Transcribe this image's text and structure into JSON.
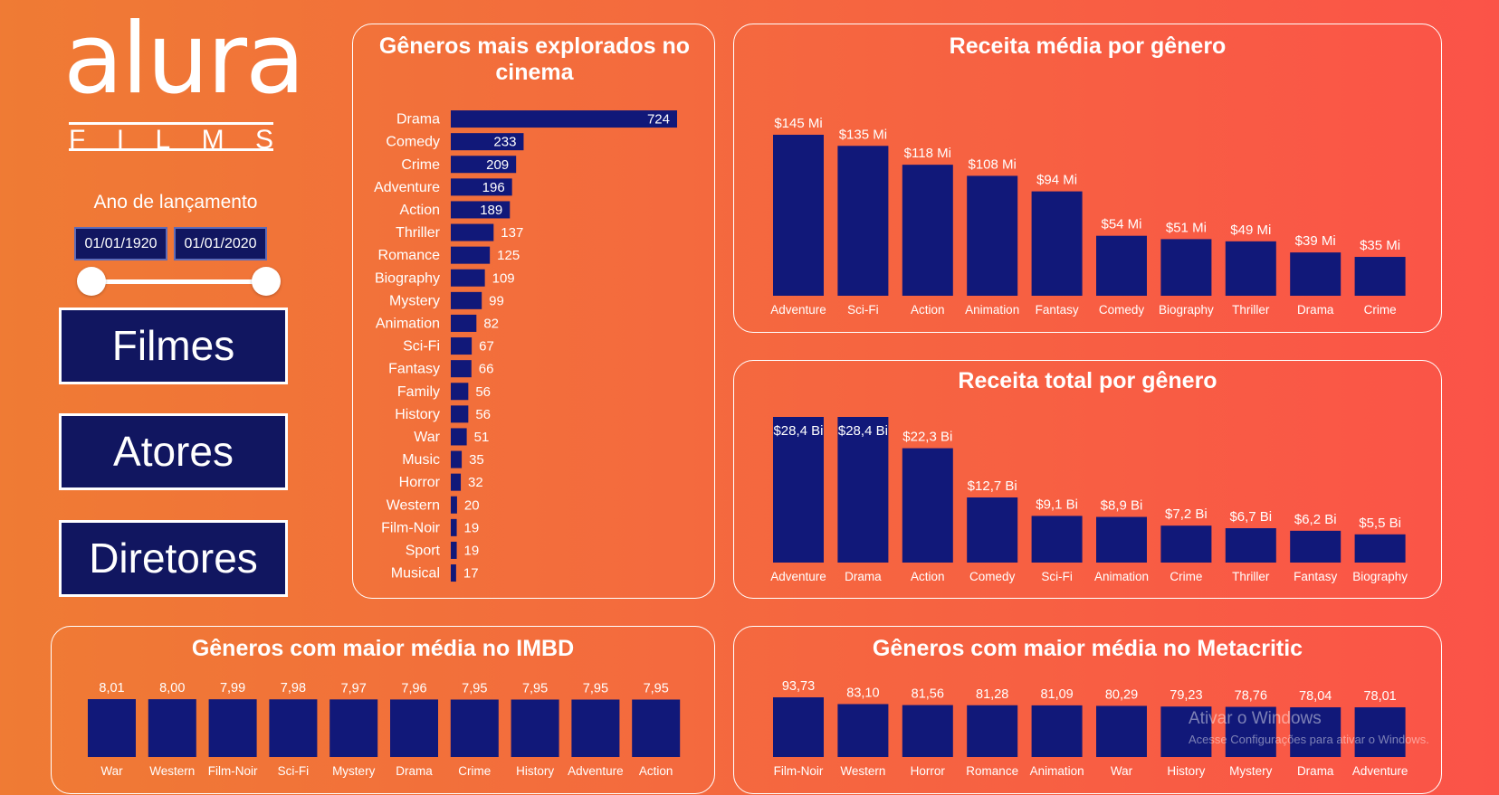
{
  "logo": {
    "brand": "alura",
    "sub_letters": [
      "F",
      "I",
      "L",
      "M",
      "S"
    ]
  },
  "filter": {
    "title": "Ano de lançamento",
    "start": "01/01/1920",
    "end": "01/01/2020",
    "slider_start_fraction": 0,
    "slider_end_fraction": 1
  },
  "nav": {
    "filmes": "Filmes",
    "atores": "Atores",
    "diretores": "Diretores"
  },
  "colors": {
    "bar": "#111879",
    "text": "#ffffff",
    "panel_border": "#ffffff",
    "button_bg": "#111660"
  },
  "watermark": {
    "title": "Ativar o Windows",
    "subtitle": "Acesse Configurações para ativar o Windows."
  },
  "chart_data": [
    {
      "id": "genres",
      "type": "bar",
      "orientation": "horizontal",
      "title": "Gêneros mais explorados no cinema",
      "categories": [
        "Drama",
        "Comedy",
        "Crime",
        "Adventure",
        "Action",
        "Thriller",
        "Romance",
        "Biography",
        "Mystery",
        "Animation",
        "Sci-Fi",
        "Fantasy",
        "Family",
        "History",
        "War",
        "Music",
        "Horror",
        "Western",
        "Film-Noir",
        "Sport",
        "Musical"
      ],
      "values": [
        724,
        233,
        209,
        196,
        189,
        137,
        125,
        109,
        99,
        82,
        67,
        66,
        56,
        56,
        51,
        35,
        32,
        20,
        19,
        19,
        17
      ],
      "labels": [
        "724",
        "233",
        "209",
        "196",
        "189",
        "137",
        "125",
        "109",
        "99",
        "82",
        "67",
        "66",
        "56",
        "56",
        "51",
        "35",
        "32",
        "20",
        "19",
        "19",
        "17"
      ],
      "xlim": [
        0,
        724
      ]
    },
    {
      "id": "avg_revenue",
      "type": "bar",
      "title": "Receita média por gênero",
      "categories": [
        "Adventure",
        "Sci-Fi",
        "Action",
        "Animation",
        "Fantasy",
        "Comedy",
        "Biography",
        "Thriller",
        "Drama",
        "Crime"
      ],
      "values": [
        145,
        135,
        118,
        108,
        94,
        54,
        51,
        49,
        39,
        35
      ],
      "labels": [
        "$145 Mi",
        "$135 Mi",
        "$118 Mi",
        "$108 Mi",
        "$94 Mi",
        "$54 Mi",
        "$51 Mi",
        "$49 Mi",
        "$39 Mi",
        "$35 Mi"
      ],
      "ylim": [
        0,
        145
      ]
    },
    {
      "id": "total_revenue",
      "type": "bar",
      "title": "Receita total por gênero",
      "categories": [
        "Adventure",
        "Drama",
        "Action",
        "Comedy",
        "Sci-Fi",
        "Animation",
        "Crime",
        "Thriller",
        "Fantasy",
        "Biography"
      ],
      "values": [
        28.4,
        28.4,
        22.3,
        12.7,
        9.1,
        8.9,
        7.2,
        6.7,
        6.2,
        5.5
      ],
      "labels": [
        "$28,4 Bi",
        "$28,4 Bi",
        "$22,3 Bi",
        "$12,7 Bi",
        "$9,1 Bi",
        "$8,9 Bi",
        "$7,2 Bi",
        "$6,7 Bi",
        "$6,2 Bi",
        "$5,5 Bi"
      ],
      "ylim": [
        0,
        28.4
      ]
    },
    {
      "id": "imdb",
      "type": "bar",
      "title": "Gêneros com maior média no IMBD",
      "categories": [
        "War",
        "Western",
        "Film-Noir",
        "Sci-Fi",
        "Mystery",
        "Drama",
        "Crime",
        "History",
        "Adventure",
        "Action"
      ],
      "values": [
        8.01,
        8.0,
        7.99,
        7.98,
        7.97,
        7.96,
        7.95,
        7.95,
        7.95,
        7.95
      ],
      "labels": [
        "8,01",
        "8,00",
        "7,99",
        "7,98",
        "7,97",
        "7,96",
        "7,95",
        "7,95",
        "7,95",
        "7,95"
      ],
      "ylim": [
        0,
        8.01
      ]
    },
    {
      "id": "metacritic",
      "type": "bar",
      "title": "Gêneros com maior média no Metacritic",
      "categories": [
        "Film-Noir",
        "Western",
        "Horror",
        "Romance",
        "Animation",
        "War",
        "History",
        "Mystery",
        "Drama",
        "Adventure"
      ],
      "values": [
        93.73,
        83.1,
        81.56,
        81.28,
        81.09,
        80.29,
        79.23,
        78.76,
        78.04,
        78.01
      ],
      "labels": [
        "93,73",
        "83,10",
        "81,56",
        "81,28",
        "81,09",
        "80,29",
        "79,23",
        "78,76",
        "78,04",
        "78,01"
      ],
      "ylim": [
        0,
        93.73
      ]
    }
  ]
}
